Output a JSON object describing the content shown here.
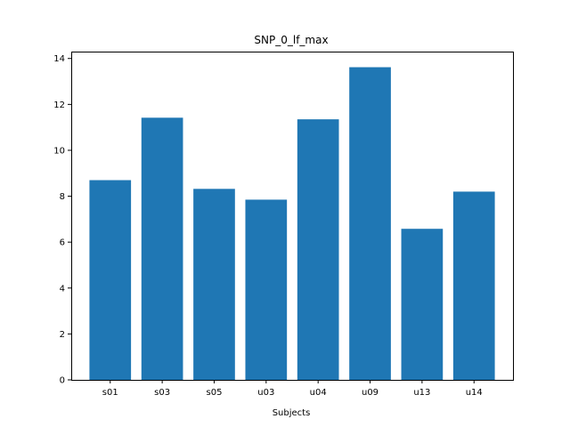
{
  "chart_data": {
    "type": "bar",
    "title": "SNP_0_lf_max",
    "xlabel": "Subjects",
    "ylabel": "",
    "categories": [
      "s01",
      "s03",
      "s05",
      "u03",
      "u04",
      "u09",
      "u13",
      "u14"
    ],
    "values": [
      8.7,
      11.42,
      8.32,
      7.85,
      11.35,
      13.62,
      6.58,
      8.2
    ],
    "ylim": [
      0,
      14.3
    ],
    "yticks": [
      0,
      2,
      4,
      6,
      8,
      10,
      12,
      14
    ],
    "grid": false,
    "bar_color": "#1f77b4"
  }
}
